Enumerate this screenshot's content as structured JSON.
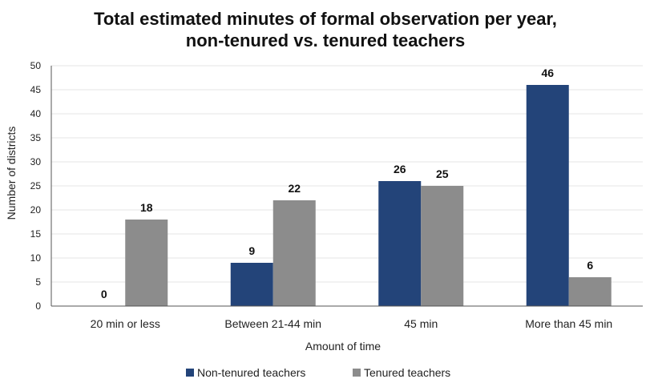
{
  "chart_data": {
    "type": "bar",
    "title_line1": "Total estimated minutes of formal observation per year,",
    "title_line2": "non-tenured vs. tenured teachers",
    "xlabel": "Amount of time",
    "ylabel": "Number of districts",
    "ylim": [
      0,
      50
    ],
    "yticks": [
      0,
      5,
      10,
      15,
      20,
      25,
      30,
      35,
      40,
      45,
      50
    ],
    "categories": [
      "20 min or less",
      "Between 21-44 min",
      "45 min",
      "More than 45 min"
    ],
    "series": [
      {
        "name": "Non-tenured teachers",
        "values": [
          0,
          9,
          26,
          46
        ],
        "color": "#234479"
      },
      {
        "name": "Tenured teachers",
        "values": [
          18,
          22,
          25,
          6
        ],
        "color": "#8c8c8c"
      }
    ],
    "grid": true,
    "legend_position": "bottom"
  }
}
